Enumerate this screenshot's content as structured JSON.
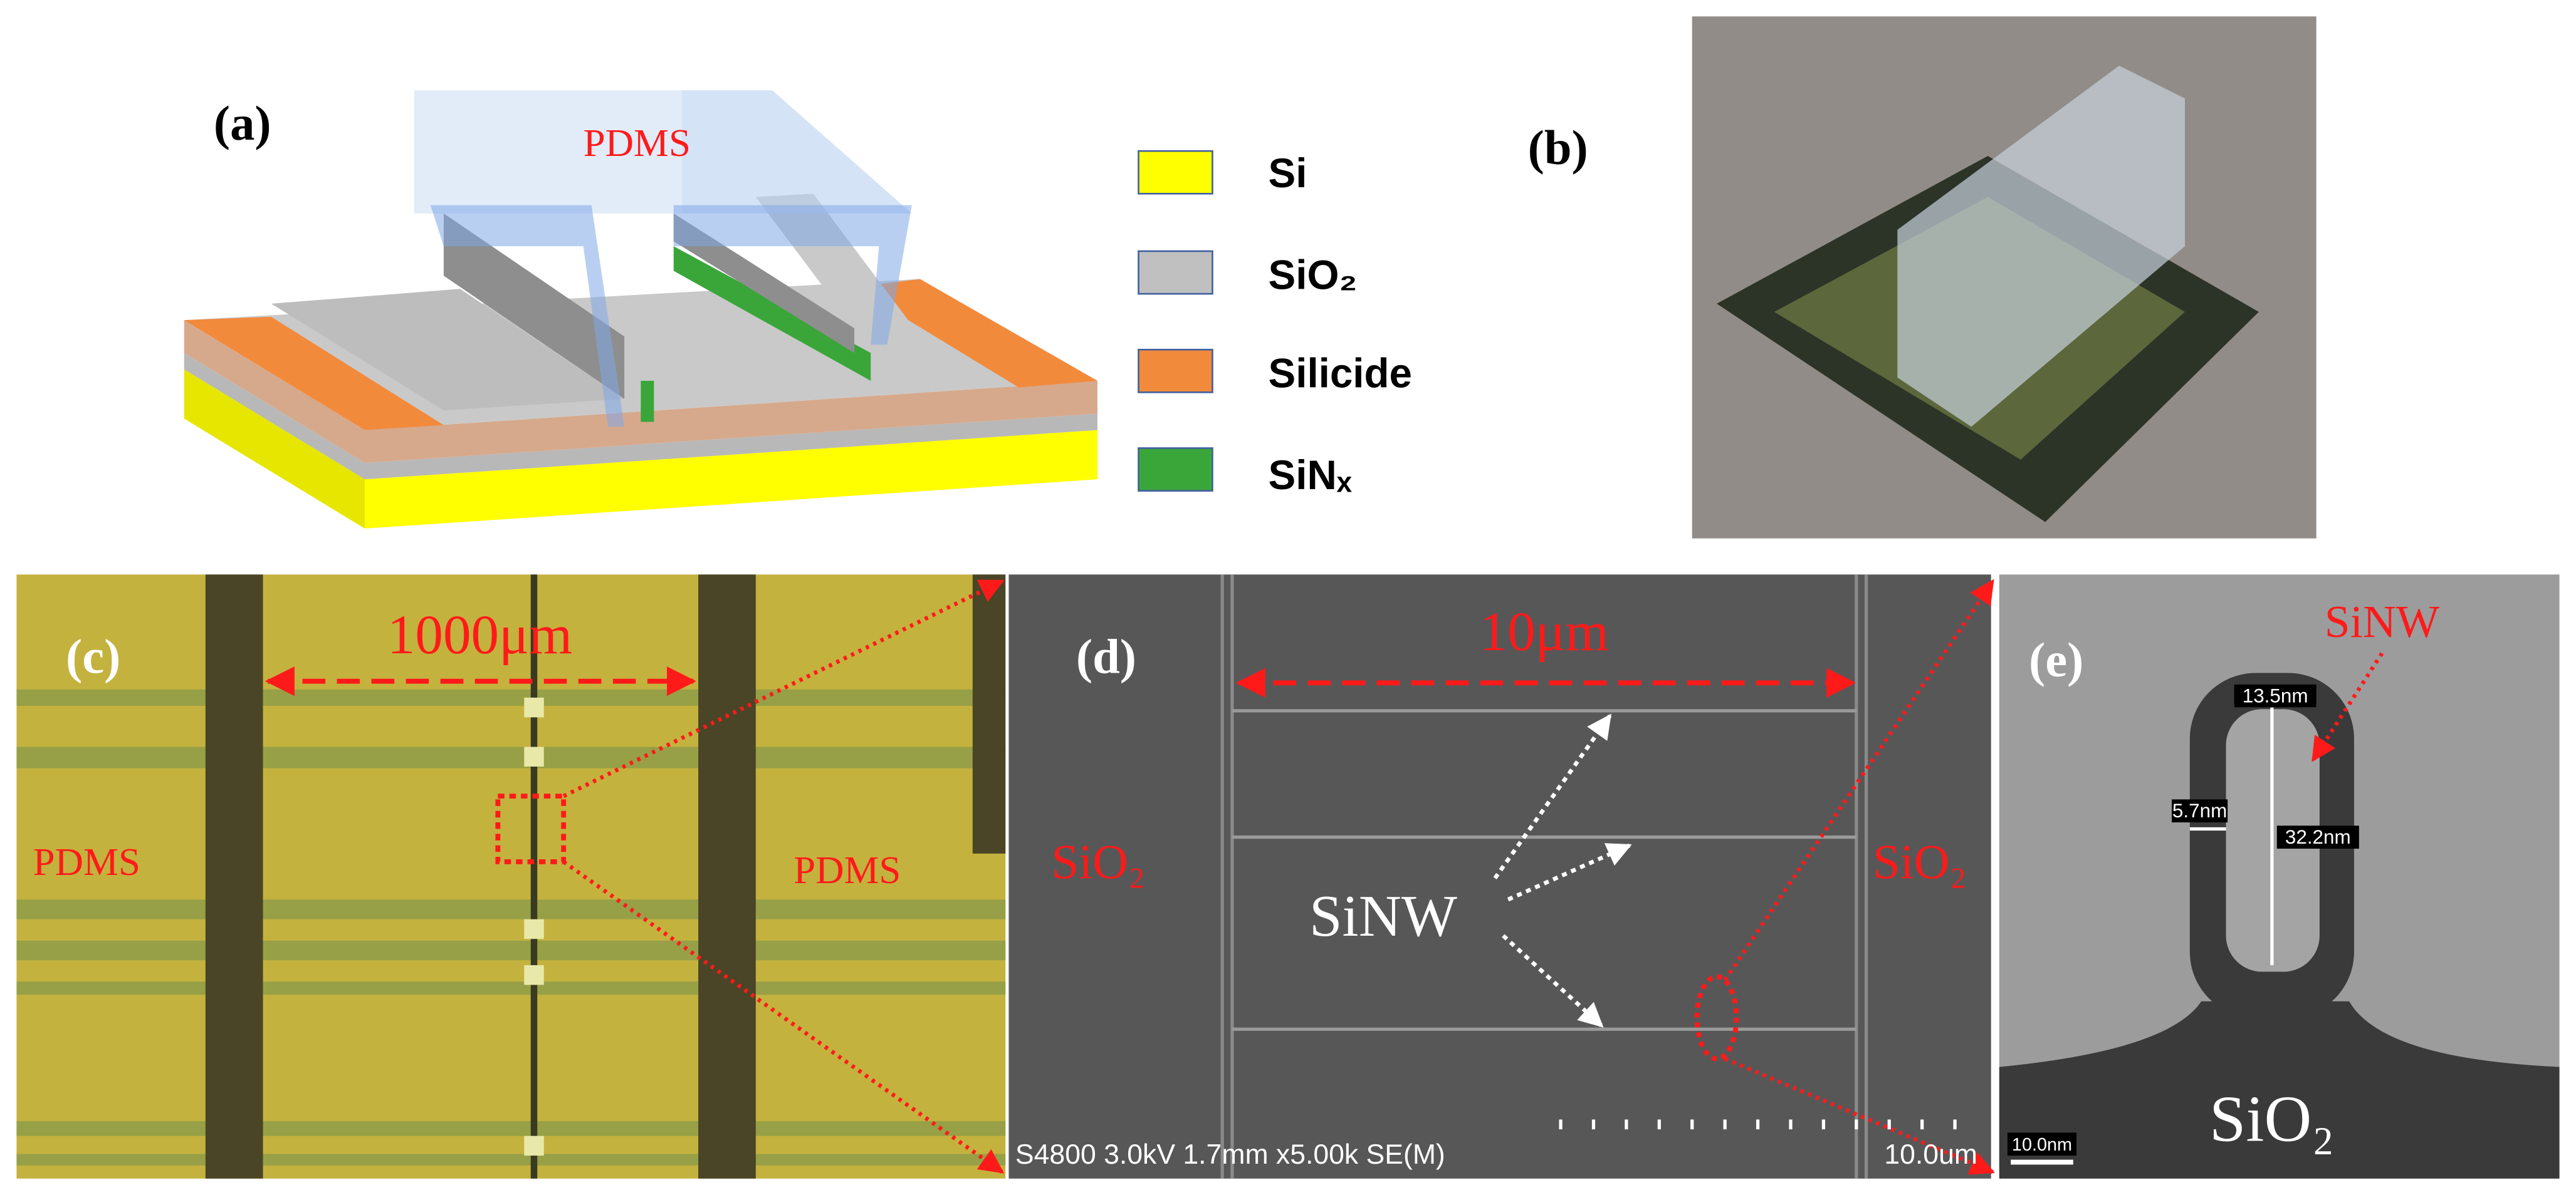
{
  "panels": {
    "a": {
      "label": "(a)",
      "cover_label": "PDMS",
      "legend": [
        "Si",
        "SiO₂",
        "Silicide",
        "SiNₓ"
      ]
    },
    "b": {
      "label": "(b)"
    },
    "c": {
      "label": "(c)",
      "scale": "1000μm",
      "left": "PDMS",
      "right": "PDMS"
    },
    "d": {
      "label": "(d)",
      "scale": "10μm",
      "left": "SiO₂",
      "right": "SiO₂",
      "wire": "SiNW",
      "footer": "S4800 3.0kV 1.7mm x5.00k SE(M)",
      "scale_bar": "10.0um"
    },
    "e": {
      "label": "(e)",
      "wire": "SiNW",
      "width": "13.5nm",
      "wall": "5.7nm",
      "height": "32.2nm",
      "substrate": "SiO₂",
      "scale_bar": "10.0nm"
    }
  }
}
